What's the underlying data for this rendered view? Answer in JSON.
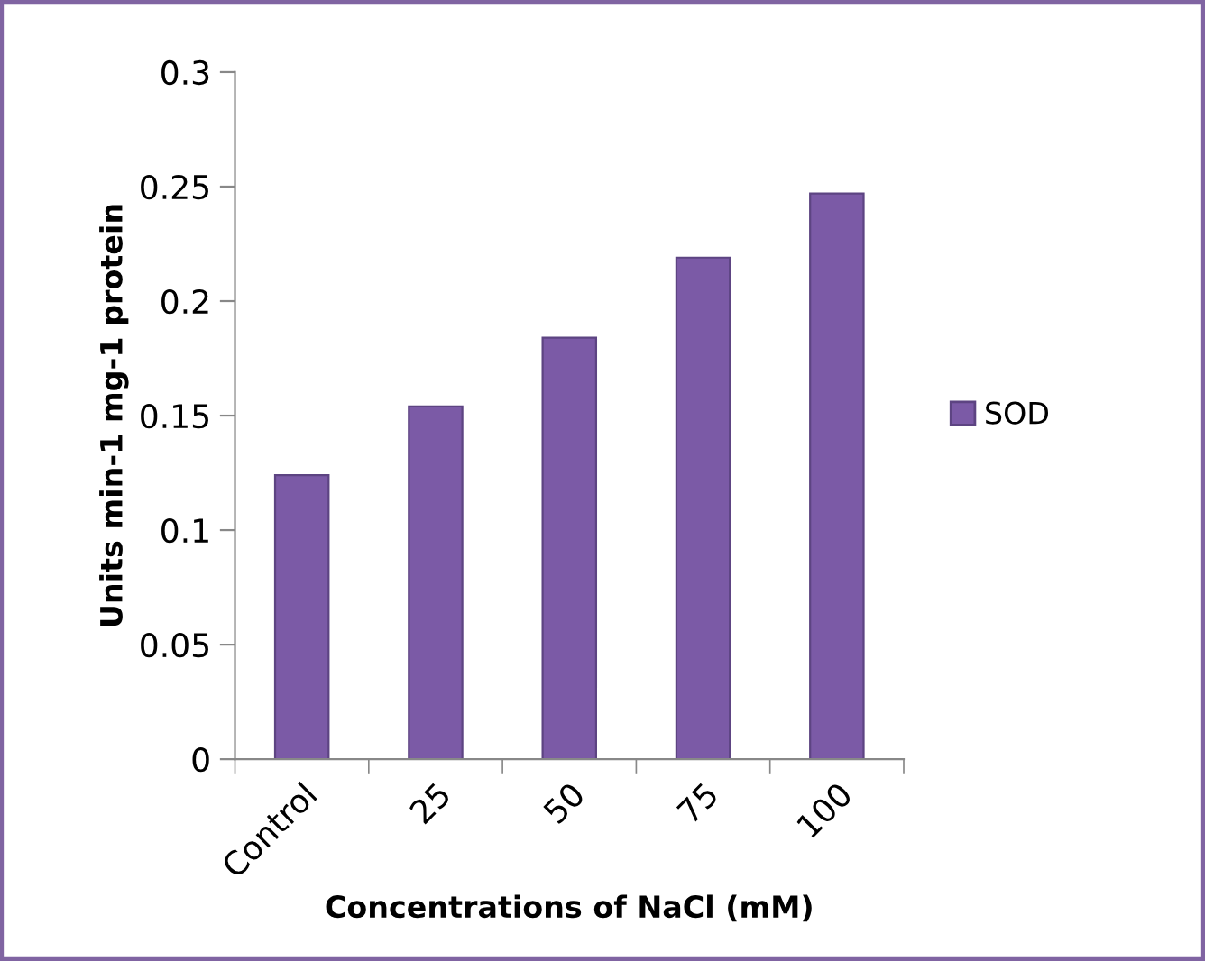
{
  "chart_data": {
    "type": "bar",
    "xlabel": "Concentrations of NaCl (mM)",
    "ylabel": "Units min-1 mg-1 protein",
    "categories": [
      "Control",
      "25",
      "50",
      "75",
      "100"
    ],
    "series": [
      {
        "name": "SOD",
        "color": "#7b5aa6",
        "values": [
          0.124,
          0.154,
          0.184,
          0.219,
          0.247
        ]
      }
    ],
    "ylim": [
      0,
      0.3
    ],
    "yticks": [
      0,
      0.05,
      0.1,
      0.15,
      0.2,
      0.25,
      0.3
    ],
    "grid": false,
    "legend": "right"
  }
}
